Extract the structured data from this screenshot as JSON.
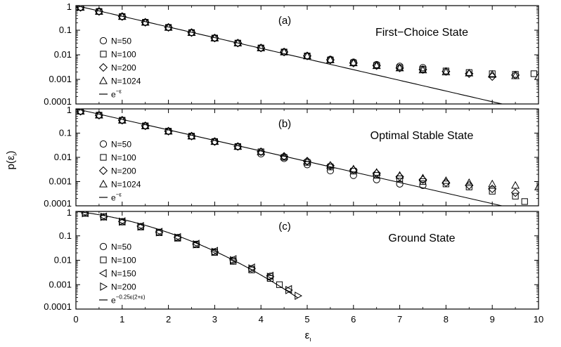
{
  "chart_data": {
    "type": "scatter",
    "xlabel": "ε",
    "xlabel_sub": "ι",
    "ylabel": "p(ε",
    "ylabel_sub": "ι",
    "ylabel_close": ")",
    "xlim": [
      0,
      10
    ],
    "x_ticks": [
      "0",
      "1",
      "2",
      "3",
      "4",
      "5",
      "6",
      "7",
      "8",
      "9",
      "10"
    ],
    "y_scale": "log",
    "ylim": [
      0.0001,
      1
    ],
    "y_ticks": [
      "0.0001",
      "0.001",
      "0.01",
      "0.1",
      "1"
    ],
    "panels": [
      {
        "label": "(a)",
        "title": "First−Choice State",
        "legend": [
          "N=50",
          "N=100",
          "N=200",
          "N=1024"
        ],
        "curve_label": "e",
        "curve_sup": "−ε",
        "curve": {
          "formula": "exp(-x)",
          "x_range": [
            0,
            10
          ]
        },
        "series": [
          {
            "name": "N=50",
            "marker": "circle",
            "x": [
              0.1,
              0.5,
              1,
              1.5,
              2,
              2.5,
              3,
              3.5,
              4,
              4.5,
              5,
              5.5,
              6,
              6.5,
              7,
              7.5
            ],
            "y": [
              0.85,
              0.58,
              0.36,
              0.21,
              0.13,
              0.08,
              0.048,
              0.03,
              0.019,
              0.013,
              0.009,
              0.0065,
              0.005,
              0.004,
              0.0034,
              0.003
            ]
          },
          {
            "name": "N=100",
            "marker": "square",
            "x": [
              0.1,
              0.5,
              1,
              1.5,
              2,
              2.5,
              3,
              3.5,
              4,
              4.5,
              5,
              5.5,
              6,
              6.5,
              7,
              7.5,
              8,
              8.5,
              9,
              9.5,
              9.9
            ],
            "y": [
              0.85,
              0.58,
              0.36,
              0.21,
              0.13,
              0.08,
              0.048,
              0.03,
              0.019,
              0.013,
              0.009,
              0.0062,
              0.0047,
              0.0037,
              0.003,
              0.0026,
              0.0022,
              0.0019,
              0.0017,
              0.0016,
              0.0017
            ]
          },
          {
            "name": "N=200",
            "marker": "diamond",
            "x": [
              0.1,
              0.5,
              1,
              1.5,
              2,
              2.5,
              3,
              3.5,
              4,
              4.5,
              5,
              5.5,
              6,
              6.5,
              7,
              7.5,
              8,
              8.5,
              9,
              9.5
            ],
            "y": [
              0.85,
              0.58,
              0.36,
              0.21,
              0.13,
              0.08,
              0.048,
              0.03,
              0.019,
              0.013,
              0.009,
              0.0062,
              0.0046,
              0.0036,
              0.0029,
              0.0025,
              0.0021,
              0.0017,
              0.0013,
              0.0015
            ]
          },
          {
            "name": "N=1024",
            "marker": "triangle-up",
            "x": [
              0.1,
              0.5,
              1,
              1.5,
              2,
              2.5,
              3,
              3.5,
              4,
              4.5,
              5,
              5.5,
              6,
              6.5,
              7,
              7.5,
              8,
              8.5,
              9,
              9.5,
              10
            ],
            "y": [
              0.85,
              0.58,
              0.36,
              0.21,
              0.13,
              0.08,
              0.048,
              0.03,
              0.019,
              0.013,
              0.009,
              0.0063,
              0.0047,
              0.0036,
              0.0029,
              0.0024,
              0.002,
              0.0018,
              0.0016,
              0.0014,
              0.0013
            ]
          }
        ]
      },
      {
        "label": "(b)",
        "title": "Optimal Stable State",
        "legend": [
          "N=50",
          "N=100",
          "N=200",
          "N=1024"
        ],
        "curve_label": "e",
        "curve_sup": "−ε",
        "curve": {
          "formula": "exp(-x)",
          "x_range": [
            0,
            10
          ]
        },
        "series": [
          {
            "name": "N=50",
            "marker": "circle",
            "x": [
              0.1,
              0.5,
              1,
              1.5,
              2,
              2.5,
              3,
              3.5,
              4,
              4.5,
              5,
              5.5,
              6,
              6.5,
              7,
              7.5
            ],
            "y": [
              0.8,
              0.55,
              0.34,
              0.2,
              0.12,
              0.075,
              0.045,
              0.028,
              0.014,
              0.009,
              0.005,
              0.0028,
              0.0018,
              0.0012,
              0.0008,
              0.0007
            ]
          },
          {
            "name": "N=100",
            "marker": "square",
            "x": [
              0.1,
              0.5,
              1,
              1.5,
              2,
              2.5,
              3,
              3.5,
              4,
              4.5,
              5,
              5.5,
              6,
              6.5,
              7,
              7.5,
              8,
              8.5,
              9,
              9.5,
              9.7
            ],
            "y": [
              0.8,
              0.55,
              0.34,
              0.2,
              0.12,
              0.075,
              0.045,
              0.028,
              0.017,
              0.01,
              0.0062,
              0.004,
              0.0027,
              0.0018,
              0.0013,
              0.001,
              0.0008,
              0.0006,
              0.0004,
              0.00025,
              0.00015
            ]
          },
          {
            "name": "N=200",
            "marker": "diamond",
            "x": [
              0.1,
              0.5,
              1,
              1.5,
              2,
              2.5,
              3,
              3.5,
              4,
              4.5,
              5,
              5.5,
              6,
              6.5,
              7,
              7.5,
              8,
              8.5,
              9,
              9.5
            ],
            "y": [
              0.8,
              0.55,
              0.34,
              0.2,
              0.12,
              0.075,
              0.045,
              0.028,
              0.017,
              0.011,
              0.007,
              0.0045,
              0.003,
              0.0022,
              0.0016,
              0.0012,
              0.0009,
              0.0007,
              0.0005,
              0.00035
            ]
          },
          {
            "name": "N=1024",
            "marker": "triangle-up",
            "x": [
              0.1,
              0.5,
              1,
              1.5,
              2,
              2.5,
              3,
              3.5,
              4,
              4.5,
              5,
              5.5,
              6,
              6.5,
              7,
              7.5,
              8,
              8.5,
              9,
              9.5,
              10
            ],
            "y": [
              0.8,
              0.55,
              0.34,
              0.2,
              0.12,
              0.075,
              0.045,
              0.028,
              0.017,
              0.011,
              0.007,
              0.0047,
              0.0033,
              0.0024,
              0.0018,
              0.0014,
              0.0011,
              0.0009,
              0.0008,
              0.0007,
              0.0006
            ]
          }
        ]
      },
      {
        "label": "(c)",
        "title": "Ground State",
        "legend": [
          "N=50",
          "N=100",
          "N=150",
          "N=200"
        ],
        "curve_label": "e",
        "curve_sup": "−0.25ε(2+ε)",
        "curve": {
          "formula": "exp(-0.25*x*(2+x))",
          "x_range": [
            0,
            4.8
          ]
        },
        "series": [
          {
            "name": "N=50",
            "marker": "circle",
            "x": [
              0.2,
              0.6,
              1,
              1.4,
              1.8,
              2.2,
              2.6,
              3,
              3.4,
              3.8,
              4.2
            ],
            "y": [
              0.85,
              0.6,
              0.38,
              0.24,
              0.14,
              0.085,
              0.045,
              0.022,
              0.01,
              0.0045,
              0.0022
            ]
          },
          {
            "name": "N=100",
            "marker": "square",
            "x": [
              0.2,
              0.6,
              1,
              1.4,
              1.8,
              2.2,
              2.6,
              3,
              3.4,
              3.8,
              4.2,
              4.4
            ],
            "y": [
              0.84,
              0.59,
              0.37,
              0.23,
              0.135,
              0.08,
              0.043,
              0.021,
              0.009,
              0.004,
              0.0018,
              0.001
            ]
          },
          {
            "name": "N=150",
            "marker": "triangle-left",
            "x": [
              0.2,
              0.6,
              1,
              1.4,
              1.8,
              2.2,
              2.6,
              3,
              3.4,
              3.8,
              4.2,
              4.6
            ],
            "y": [
              0.86,
              0.61,
              0.39,
              0.25,
              0.145,
              0.088,
              0.047,
              0.024,
              0.011,
              0.005,
              0.0023,
              0.00065
            ]
          },
          {
            "name": "N=200",
            "marker": "triangle-right",
            "x": [
              0.2,
              0.6,
              1,
              1.4,
              1.8,
              2.2,
              2.6,
              3,
              3.4,
              3.8,
              4.2,
              4.6,
              4.8
            ],
            "y": [
              0.85,
              0.6,
              0.38,
              0.24,
              0.14,
              0.085,
              0.045,
              0.022,
              0.01,
              0.0046,
              0.0021,
              0.0006,
              0.00035
            ]
          }
        ]
      }
    ]
  }
}
